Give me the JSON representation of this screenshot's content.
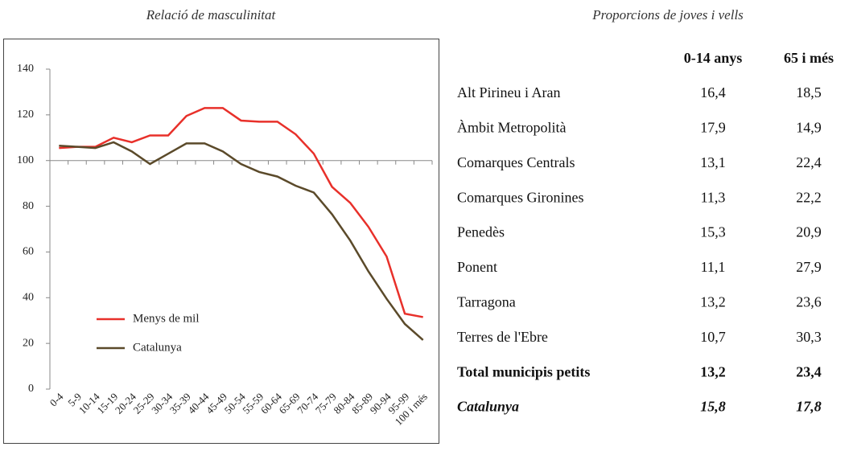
{
  "chart_data": {
    "type": "line",
    "title": "Relació de masculinitat",
    "categories": [
      "0-4",
      "5-9",
      "10-14",
      "15-19",
      "20-24",
      "25-29",
      "30-34",
      "35-39",
      "40-44",
      "45-49",
      "50-54",
      "55-59",
      "60-64",
      "65-69",
      "70-74",
      "75-79",
      "80-84",
      "85-89",
      "90-94",
      "95-99",
      "100 i més"
    ],
    "series": [
      {
        "name": "Menys de mil",
        "color": "#e8302a",
        "values": [
          105.5,
          106,
          106,
          110,
          108,
          111,
          111,
          119.5,
          123,
          123,
          117.5,
          117,
          117,
          111.5,
          103,
          88.5,
          81.5,
          71,
          58,
          33,
          31.5
        ]
      },
      {
        "name": "Catalunya",
        "color": "#5b4a2a",
        "values": [
          106.5,
          106,
          105.5,
          108,
          104,
          98.5,
          103,
          107.5,
          107.5,
          104,
          98.5,
          95,
          93,
          89,
          86,
          76.5,
          65,
          51.5,
          39.5,
          28.5,
          21.5
        ]
      }
    ],
    "ylim": [
      0,
      140
    ],
    "yticks": [
      0,
      20,
      40,
      60,
      80,
      100,
      120,
      140
    ],
    "x_axis_crossing": 100,
    "legend": "lower-left",
    "grid": false
  },
  "table": {
    "title": "Proporcions de joves i vells",
    "columns": [
      "0-14 anys",
      "65 i més"
    ],
    "rows": [
      [
        "Alt Pirineu i Aran",
        "16,4",
        "18,5"
      ],
      [
        "Àmbit Metropolità",
        "17,9",
        "14,9"
      ],
      [
        "Comarques Centrals",
        "13,1",
        "22,4"
      ],
      [
        "Comarques Gironines",
        "11,3",
        "22,2"
      ],
      [
        "Penedès",
        "15,3",
        "20,9"
      ],
      [
        "Ponent",
        "11,1",
        "27,9"
      ],
      [
        "Tarragona",
        "13,2",
        "23,6"
      ],
      [
        "Terres de l'Ebre",
        "10,7",
        "30,3"
      ],
      [
        "Total municipis petits",
        "13,2",
        "23,4"
      ],
      [
        "Catalunya",
        "15,8",
        "17,8"
      ]
    ]
  }
}
